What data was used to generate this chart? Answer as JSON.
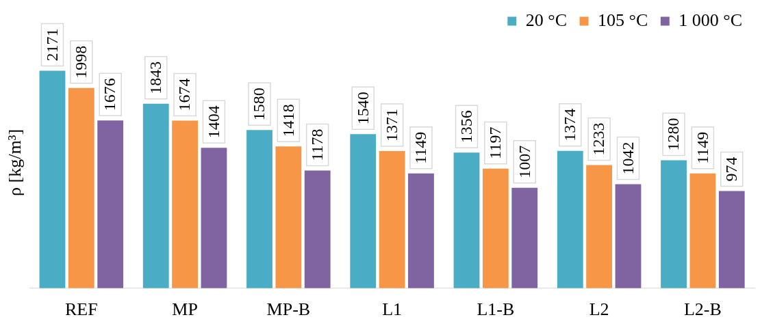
{
  "chart_data": {
    "type": "bar",
    "ylabel": "ρ [kg/m³]",
    "categories": [
      "REF",
      "MP",
      "MP-B",
      "L1",
      "L1-B",
      "L2",
      "L2-B"
    ],
    "series": [
      {
        "name": "20 °C",
        "color": "#4bacc6",
        "values": [
          2171,
          1843,
          1580,
          1540,
          1356,
          1374,
          1280
        ]
      },
      {
        "name": "105 °C",
        "color": "#f79646",
        "values": [
          1998,
          1674,
          1418,
          1371,
          1197,
          1233,
          1149
        ]
      },
      {
        "name": "1 000 °C",
        "color": "#8064a2",
        "values": [
          1676,
          1404,
          1178,
          1149,
          1007,
          1042,
          974
        ]
      }
    ],
    "tick_labels": "x",
    "legend": "top right",
    "data_labels": true
  }
}
